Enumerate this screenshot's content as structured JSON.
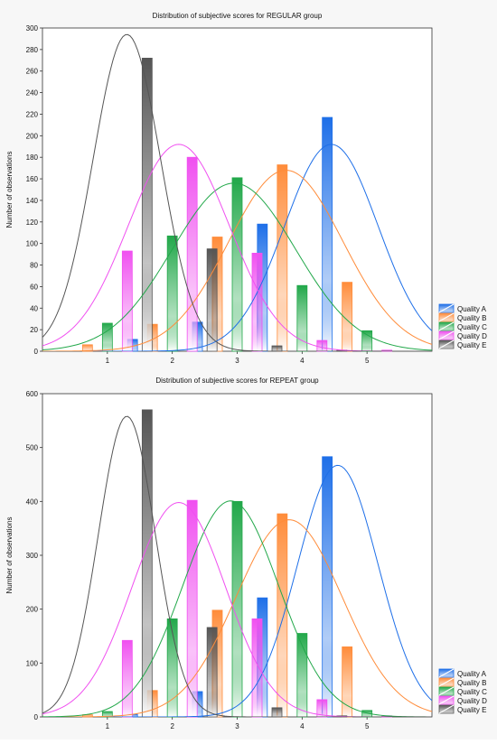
{
  "chart_data": [
    {
      "type": "bar",
      "title": "Distribution of subjective scores for REGULAR group",
      "ylabel": "Number of observations",
      "xlabel": "",
      "xlim": [
        0,
        6
      ],
      "ylim": [
        0,
        300
      ],
      "x_ticks": [
        1,
        2,
        3,
        4,
        5
      ],
      "y_ticks": [
        0,
        20,
        40,
        60,
        80,
        100,
        120,
        140,
        160,
        180,
        200,
        220,
        240,
        260,
        280,
        300
      ],
      "categories": [
        1,
        2,
        3,
        4,
        5
      ],
      "legend_position": "bottom-right",
      "grid": false,
      "series": [
        {
          "name": "Quality A",
          "color": "#1e6fe8",
          "values": [
            0,
            11,
            27,
            118,
            217
          ],
          "curve": {
            "mean": 4.45,
            "sd": 0.72,
            "peak": 192
          }
        },
        {
          "name": "Quality B",
          "color": "#ff8c3a",
          "values": [
            6,
            25,
            106,
            173,
            64
          ],
          "curve": {
            "mean": 3.75,
            "sd": 0.88,
            "peak": 168
          }
        },
        {
          "name": "Quality C",
          "color": "#22a84a",
          "values": [
            26,
            107,
            161,
            61,
            19
          ],
          "curve": {
            "mean": 2.95,
            "sd": 0.95,
            "peak": 156
          }
        },
        {
          "name": "Quality D",
          "color": "#f050f0",
          "values": [
            93,
            180,
            91,
            10,
            1
          ],
          "curve": {
            "mean": 2.1,
            "sd": 0.78,
            "peak": 192
          }
        },
        {
          "name": "Quality E",
          "color": "#555555",
          "values": [
            272,
            95,
            5,
            1,
            0
          ],
          "curve": {
            "mean": 1.3,
            "sd": 0.52,
            "peak": 294
          }
        }
      ]
    },
    {
      "type": "bar",
      "title": "Distribution of subjective scores for REPEAT group",
      "ylabel": "Number of observations",
      "xlabel": "",
      "xlim": [
        0,
        6
      ],
      "ylim": [
        0,
        600
      ],
      "x_ticks": [
        1,
        2,
        3,
        4,
        5
      ],
      "y_ticks": [
        0,
        100,
        200,
        300,
        400,
        500,
        600
      ],
      "categories": [
        1,
        2,
        3,
        4,
        5
      ],
      "legend_position": "bottom-right",
      "grid": false,
      "series": [
        {
          "name": "Quality A",
          "color": "#1e6fe8",
          "values": [
            0,
            5,
            47,
            221,
            483
          ],
          "curve": {
            "mean": 4.55,
            "sd": 0.62,
            "peak": 467
          }
        },
        {
          "name": "Quality B",
          "color": "#ff8c3a",
          "values": [
            4,
            49,
            198,
            377,
            130
          ],
          "curve": {
            "mean": 3.8,
            "sd": 0.82,
            "peak": 366
          }
        },
        {
          "name": "Quality C",
          "color": "#22a84a",
          "values": [
            10,
            182,
            400,
            155,
            12
          ],
          "curve": {
            "mean": 2.9,
            "sd": 0.74,
            "peak": 401
          }
        },
        {
          "name": "Quality D",
          "color": "#f050f0",
          "values": [
            142,
            402,
            182,
            32,
            2
          ],
          "curve": {
            "mean": 2.1,
            "sd": 0.72,
            "peak": 398
          }
        },
        {
          "name": "Quality E",
          "color": "#555555",
          "values": [
            570,
            166,
            17,
            2,
            0
          ],
          "curve": {
            "mean": 1.3,
            "sd": 0.44,
            "peak": 558
          }
        }
      ]
    }
  ]
}
